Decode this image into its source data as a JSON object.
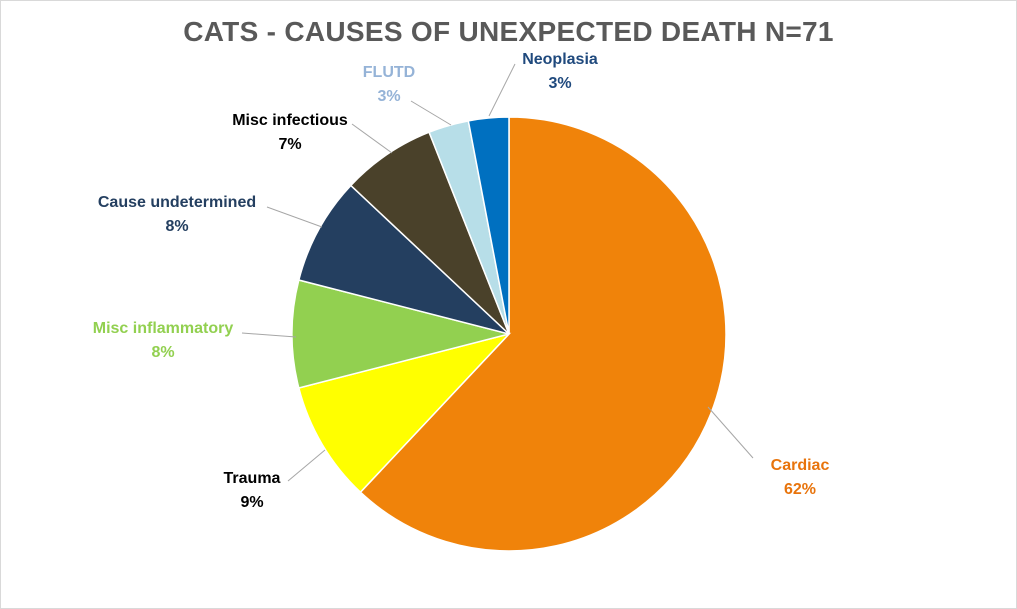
{
  "chart_data": {
    "type": "pie",
    "title": "CATS - CAUSES OF UNEXPECTED DEATH N=71",
    "slices": [
      {
        "label": "Cardiac",
        "percent_label": "62%",
        "value": 62,
        "color": "#F0830A",
        "label_color": "#E8740C"
      },
      {
        "label": "Trauma",
        "percent_label": "9%",
        "value": 9,
        "color": "#FFFF00",
        "label_color": "#000000"
      },
      {
        "label": "Misc inflammatory",
        "percent_label": "8%",
        "value": 8,
        "color": "#92D050",
        "label_color": "#92D050"
      },
      {
        "label": "Cause undetermined",
        "percent_label": "8%",
        "value": 8,
        "color": "#243F60",
        "label_color": "#243F60"
      },
      {
        "label": "Misc infectious",
        "percent_label": "7%",
        "value": 7,
        "color": "#4A412A",
        "label_color": "#000000"
      },
      {
        "label": "FLUTD",
        "percent_label": "3%",
        "value": 3,
        "color": "#B7DEE8",
        "label_color": "#95B3D7"
      },
      {
        "label": "Neoplasia",
        "percent_label": "3%",
        "value": 3,
        "color": "#0070C0",
        "label_color": "#1F497D"
      }
    ],
    "legend": "none"
  }
}
